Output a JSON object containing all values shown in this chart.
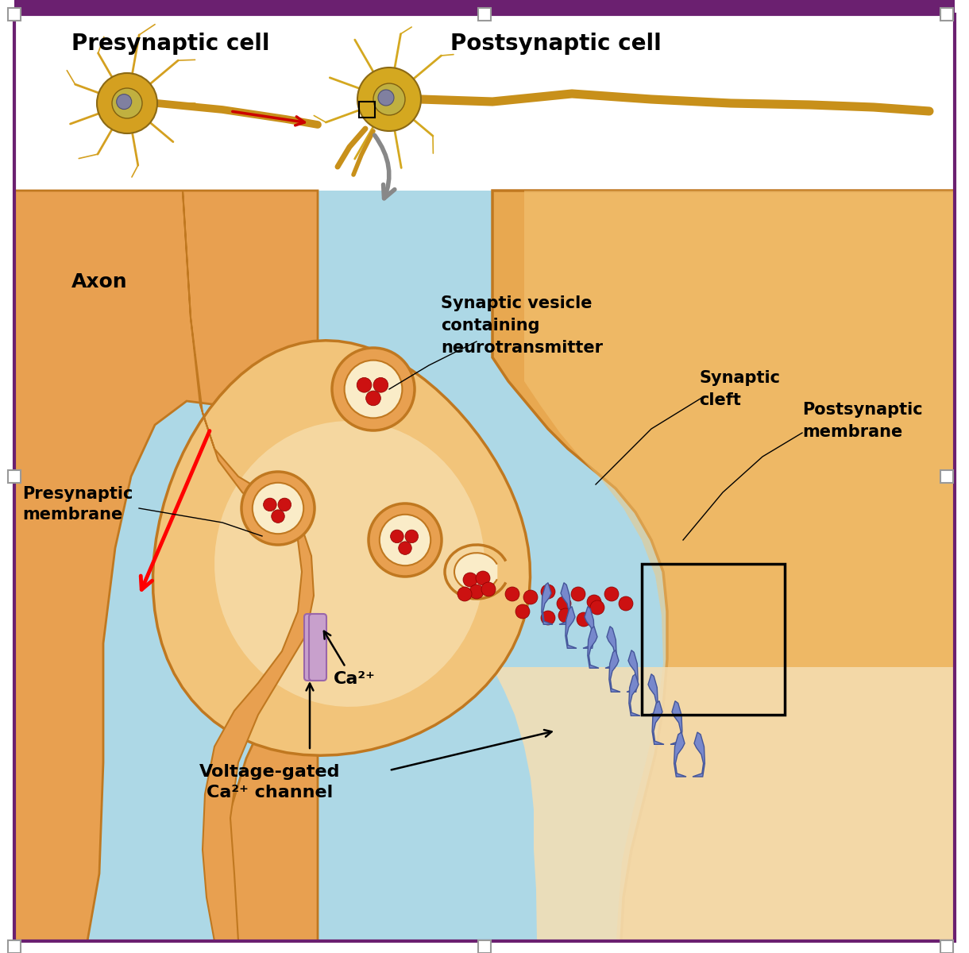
{
  "bg_color": "#ffffff",
  "border_color": "#6B2070",
  "sky_blue": "#ADD8E6",
  "axon_orange": "#E8A050",
  "axon_dark": "#C07820",
  "terminal_fill": "#F2C47A",
  "terminal_inner": "#F8DFA0",
  "vesicle_ring": "#E8A050",
  "vesicle_inner": "#FAECC8",
  "red_dot": "#CC1111",
  "receptor_blue": "#7788CC",
  "receptor_dark": "#445599",
  "ca_channel": "#C8A0CC",
  "ca_channel_dark": "#9966AA",
  "post_orange": "#E8A850",
  "post_inner": "#F5C87A",
  "post_bottom": "#F5DEB3",
  "neuron_gold": "#D4A017",
  "neuron_dark": "#8B6914",
  "title_presynaptic": "Presynaptic cell",
  "title_postsynaptic": "Postsynaptic cell",
  "label_axon": "Axon",
  "label_presynaptic_membrane": "Presynaptic\nmembrane",
  "label_synaptic_vesicle": "Synaptic vesicle\ncontaining\nneurotransmitter",
  "label_synaptic_cleft": "Synaptic\ncleft",
  "label_postsynaptic_membrane": "Postsynaptic\nmembrane",
  "label_ca": "Ca²⁺",
  "label_voltage_gated": "Voltage-gated\nCa²⁺ channel"
}
